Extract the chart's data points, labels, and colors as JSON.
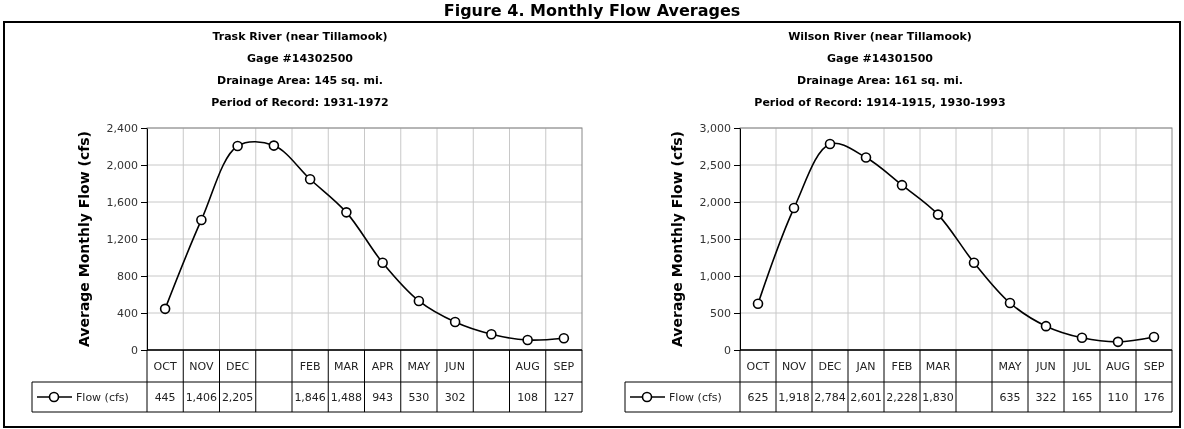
{
  "chart_data": [
    {
      "type": "line",
      "title": "Trask River (near Tillamook)",
      "subtitle": "Gage #14302500\nDrainage Area: 145 sq. mi.\nPeriod of Record: 1931-1972",
      "annotations": [
        "Figure 4.    Monthly Flow Averages"
      ],
      "ylabel": "Average Monthly Flow (cfs)",
      "categories": [
        "OCT",
        "NOV",
        "DEC",
        null,
        "FEB",
        "MAR",
        "APR",
        "MAY",
        "JUN",
        null,
        "AUG",
        "SEP"
      ],
      "series": [
        {
          "name": "Flow (cfs)",
          "color": "#000000",
          "values": [
            445,
            1406,
            2205,
            2210,
            1846,
            1488,
            943,
            530,
            302,
            170,
            108,
            127
          ],
          "value_labels": [
            "445",
            "1,406",
            "2,205",
            null,
            "1,846",
            "1,488",
            "943",
            "530",
            "302",
            null,
            "108",
            "127"
          ]
        }
      ],
      "ylim": [
        0,
        2400
      ],
      "yticks": [
        0,
        {
          "value": 400,
          "label": "400"
        },
        {
          "value": 800,
          "label": "800"
        },
        {
          "value": 1200,
          "label": "1,200"
        },
        {
          "value": 1600,
          "label": "1,600"
        },
        {
          "value": 2000,
          "label": "2,000"
        },
        {
          "value": 2400,
          "label": "2,400"
        }
      ],
      "grid": true,
      "legend": "bottom left",
      "marker": "circle",
      "line_style": "solid"
    },
    {
      "type": "line",
      "title": "Wilson River (near Tillamook)",
      "subtitle": "Gage #14301500\nDrainage Area: 161 sq. mi.\nPeriod of Record: 1914-1915, 1930-1993",
      "ylabel": "Average Monthly Flow (cfs)",
      "categories": [
        "OCT",
        "NOV",
        "DEC",
        "JAN",
        "FEB",
        "MAR",
        null,
        "MAY",
        "JUN",
        "JUL",
        "AUG",
        "SEP"
      ],
      "series": [
        {
          "name": "Flow (cfs)",
          "color": "#000000",
          "values": [
            625,
            1918,
            2784,
            2601,
            2228,
            1830,
            1180,
            635,
            322,
            165,
            110,
            176
          ],
          "value_labels": [
            "625",
            "1,918",
            "2,784",
            "2,601",
            "2,228",
            "1,830",
            null,
            "635",
            "322",
            "165",
            "110",
            "176"
          ]
        }
      ],
      "ylim": [
        0,
        3000
      ],
      "yticks": [
        0,
        {
          "value": 500,
          "label": "500"
        },
        {
          "value": 1000,
          "label": "1,000"
        },
        {
          "value": 1500,
          "label": "1,500"
        },
        {
          "value": 2000,
          "label": "2,000"
        },
        {
          "value": 2500,
          "label": "2,500"
        },
        {
          "value": 3000,
          "label": "3,000"
        }
      ],
      "grid": true,
      "legend": "bottom left",
      "marker": "circle",
      "line_style": "solid"
    }
  ]
}
